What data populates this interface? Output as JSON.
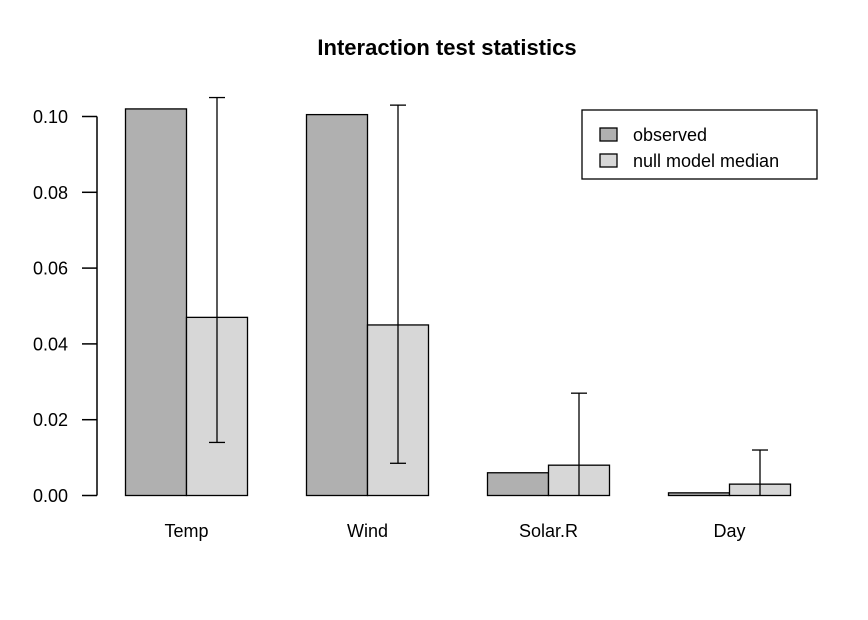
{
  "chart_data": {
    "type": "bar",
    "title": "Interaction test statistics",
    "categories": [
      "Temp",
      "Wind",
      "Solar.R",
      "Day"
    ],
    "series": [
      {
        "name": "observed",
        "color": "#b0b0b0",
        "values": [
          0.102,
          0.1005,
          0.006,
          0.0007
        ]
      },
      {
        "name": "null model median",
        "color": "#d7d7d7",
        "values": [
          0.047,
          0.045,
          0.008,
          0.003
        ]
      }
    ],
    "error_bars": {
      "on_series": "null model median",
      "upper": [
        0.105,
        0.103,
        0.027,
        0.012
      ],
      "lower": [
        0.014,
        0.0085,
        null,
        null
      ]
    },
    "yticks": [
      "0.00",
      "0.02",
      "0.04",
      "0.06",
      "0.08",
      "0.10"
    ],
    "ytick_values": [
      0,
      0.02,
      0.04,
      0.06,
      0.08,
      0.1
    ],
    "ylim": [
      0,
      0.108
    ],
    "xlabel": "",
    "ylabel": "",
    "grid": false,
    "legend": {
      "position": "top-right",
      "items": [
        "observed",
        "null model median"
      ]
    },
    "colors": {
      "background": "#ffffff",
      "axis": "#000000",
      "bar_border": "#000000"
    }
  }
}
